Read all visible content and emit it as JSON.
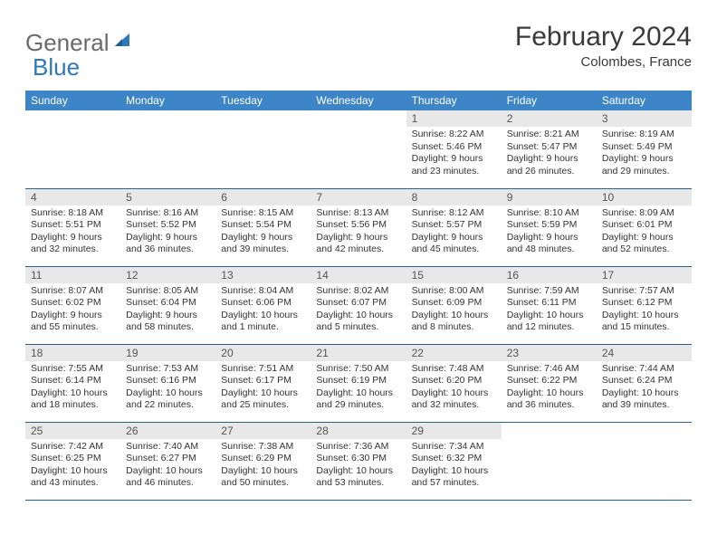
{
  "brand": {
    "text1": "General",
    "text2": "Blue"
  },
  "title": "February 2024",
  "location": "Colombes, France",
  "dayHeaders": [
    "Sunday",
    "Monday",
    "Tuesday",
    "Wednesday",
    "Thursday",
    "Friday",
    "Saturday"
  ],
  "colors": {
    "header_bg": "#3d85c6",
    "header_text": "#ffffff",
    "daynum_bg": "#e8e8e8",
    "cell_border": "#2e5f8a",
    "logo_blue": "#2f77bb",
    "logo_gray": "#6a6a6a",
    "body_text": "#333333"
  },
  "weeks": [
    [
      null,
      null,
      null,
      null,
      {
        "n": "1",
        "sr": "8:22 AM",
        "ss": "5:46 PM",
        "dl": "9 hours and 23 minutes."
      },
      {
        "n": "2",
        "sr": "8:21 AM",
        "ss": "5:47 PM",
        "dl": "9 hours and 26 minutes."
      },
      {
        "n": "3",
        "sr": "8:19 AM",
        "ss": "5:49 PM",
        "dl": "9 hours and 29 minutes."
      }
    ],
    [
      {
        "n": "4",
        "sr": "8:18 AM",
        "ss": "5:51 PM",
        "dl": "9 hours and 32 minutes."
      },
      {
        "n": "5",
        "sr": "8:16 AM",
        "ss": "5:52 PM",
        "dl": "9 hours and 36 minutes."
      },
      {
        "n": "6",
        "sr": "8:15 AM",
        "ss": "5:54 PM",
        "dl": "9 hours and 39 minutes."
      },
      {
        "n": "7",
        "sr": "8:13 AM",
        "ss": "5:56 PM",
        "dl": "9 hours and 42 minutes."
      },
      {
        "n": "8",
        "sr": "8:12 AM",
        "ss": "5:57 PM",
        "dl": "9 hours and 45 minutes."
      },
      {
        "n": "9",
        "sr": "8:10 AM",
        "ss": "5:59 PM",
        "dl": "9 hours and 48 minutes."
      },
      {
        "n": "10",
        "sr": "8:09 AM",
        "ss": "6:01 PM",
        "dl": "9 hours and 52 minutes."
      }
    ],
    [
      {
        "n": "11",
        "sr": "8:07 AM",
        "ss": "6:02 PM",
        "dl": "9 hours and 55 minutes."
      },
      {
        "n": "12",
        "sr": "8:05 AM",
        "ss": "6:04 PM",
        "dl": "9 hours and 58 minutes."
      },
      {
        "n": "13",
        "sr": "8:04 AM",
        "ss": "6:06 PM",
        "dl": "10 hours and 1 minute."
      },
      {
        "n": "14",
        "sr": "8:02 AM",
        "ss": "6:07 PM",
        "dl": "10 hours and 5 minutes."
      },
      {
        "n": "15",
        "sr": "8:00 AM",
        "ss": "6:09 PM",
        "dl": "10 hours and 8 minutes."
      },
      {
        "n": "16",
        "sr": "7:59 AM",
        "ss": "6:11 PM",
        "dl": "10 hours and 12 minutes."
      },
      {
        "n": "17",
        "sr": "7:57 AM",
        "ss": "6:12 PM",
        "dl": "10 hours and 15 minutes."
      }
    ],
    [
      {
        "n": "18",
        "sr": "7:55 AM",
        "ss": "6:14 PM",
        "dl": "10 hours and 18 minutes."
      },
      {
        "n": "19",
        "sr": "7:53 AM",
        "ss": "6:16 PM",
        "dl": "10 hours and 22 minutes."
      },
      {
        "n": "20",
        "sr": "7:51 AM",
        "ss": "6:17 PM",
        "dl": "10 hours and 25 minutes."
      },
      {
        "n": "21",
        "sr": "7:50 AM",
        "ss": "6:19 PM",
        "dl": "10 hours and 29 minutes."
      },
      {
        "n": "22",
        "sr": "7:48 AM",
        "ss": "6:20 PM",
        "dl": "10 hours and 32 minutes."
      },
      {
        "n": "23",
        "sr": "7:46 AM",
        "ss": "6:22 PM",
        "dl": "10 hours and 36 minutes."
      },
      {
        "n": "24",
        "sr": "7:44 AM",
        "ss": "6:24 PM",
        "dl": "10 hours and 39 minutes."
      }
    ],
    [
      {
        "n": "25",
        "sr": "7:42 AM",
        "ss": "6:25 PM",
        "dl": "10 hours and 43 minutes."
      },
      {
        "n": "26",
        "sr": "7:40 AM",
        "ss": "6:27 PM",
        "dl": "10 hours and 46 minutes."
      },
      {
        "n": "27",
        "sr": "7:38 AM",
        "ss": "6:29 PM",
        "dl": "10 hours and 50 minutes."
      },
      {
        "n": "28",
        "sr": "7:36 AM",
        "ss": "6:30 PM",
        "dl": "10 hours and 53 minutes."
      },
      {
        "n": "29",
        "sr": "7:34 AM",
        "ss": "6:32 PM",
        "dl": "10 hours and 57 minutes."
      },
      null,
      null
    ]
  ],
  "labels": {
    "sunrise": "Sunrise:",
    "sunset": "Sunset:",
    "daylight": "Daylight:"
  }
}
